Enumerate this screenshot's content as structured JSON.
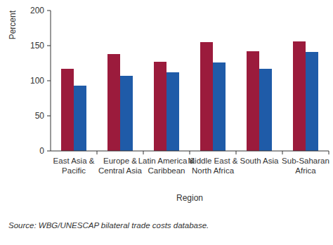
{
  "chart_data": {
    "type": "bar",
    "y_label": "Percent",
    "x_label": "Region",
    "source": "Source: WBG/UNESCAP bilateral trade costs database.",
    "categories": [
      "East Asia & Pacific",
      "Europe & Central Asia",
      "Latin America & Caribbean",
      "Middle East & North Africa",
      "South Asia",
      "Sub-Saharan Africa"
    ],
    "series": [
      {
        "color": "#9b1b3c",
        "values": [
          117,
          138,
          127,
          155,
          142,
          156
        ]
      },
      {
        "color": "#1f5ba8",
        "values": [
          93,
          107,
          112,
          126,
          117,
          141
        ]
      }
    ],
    "ylim": [
      0,
      200
    ],
    "yticks": [
      0,
      50,
      100,
      150,
      200
    ],
    "grid": false
  }
}
